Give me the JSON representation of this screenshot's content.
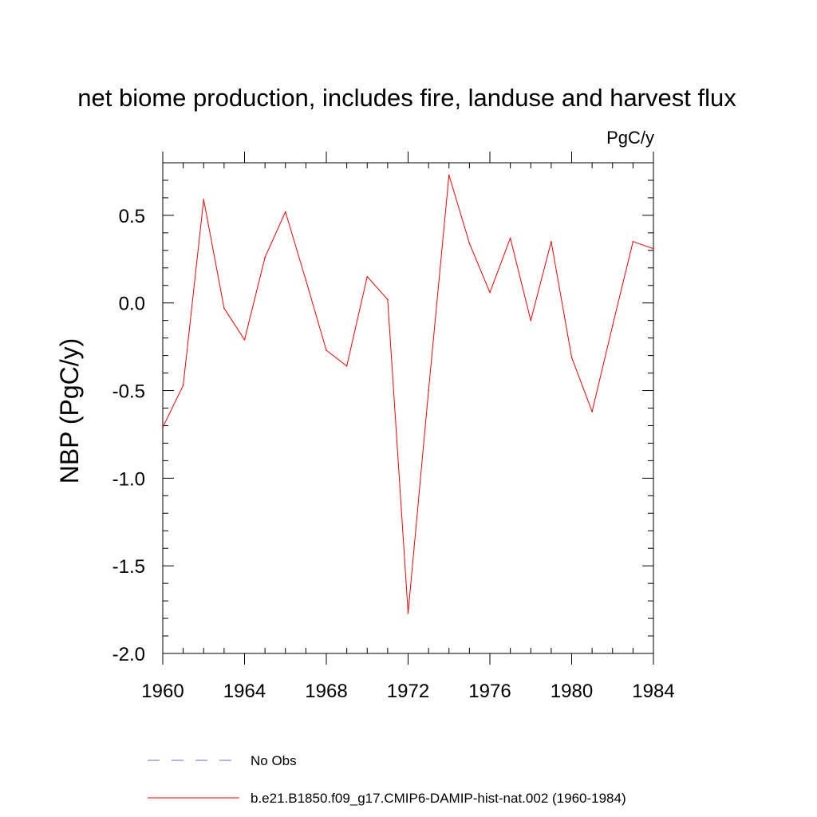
{
  "chart_data": {
    "type": "line",
    "title": "net biome production, includes fire, landuse and harvest flux",
    "units": "PgC/y",
    "ylabel": "NBP  (PgC/y)",
    "xlabel": "",
    "xlim": [
      1960,
      1984
    ],
    "ylim": [
      -2.0,
      0.8
    ],
    "x_ticks": [
      "1960",
      "1964",
      "1968",
      "1972",
      "1976",
      "1980",
      "1984"
    ],
    "y_ticks": [
      "0.5",
      "0.0",
      "-0.5",
      "-1.0",
      "-1.5",
      "-2.0"
    ],
    "grid": false,
    "legend_position": "bottom",
    "legend": [
      {
        "label": "No Obs",
        "color": "#6a6acd",
        "style": "dashed"
      },
      {
        "label": "b.e21.B1850.f09_g17.CMIP6-DAMIP-hist-nat.002 (1960-1984)",
        "color": "#ff0000",
        "style": "solid"
      }
    ],
    "series": [
      {
        "name": "b.e21.B1850.f09_g17.CMIP6-DAMIP-hist-nat.002 (1960-1984)",
        "color": "#ff0000",
        "x": [
          1960,
          1961,
          1962,
          1963,
          1964,
          1965,
          1966,
          1967,
          1968,
          1969,
          1970,
          1971,
          1972,
          1973,
          1974,
          1975,
          1976,
          1977,
          1978,
          1979,
          1980,
          1981,
          1982,
          1983,
          1984
        ],
        "y": [
          -0.71,
          -0.47,
          0.59,
          -0.03,
          -0.21,
          0.26,
          0.52,
          0.13,
          -0.27,
          -0.36,
          0.15,
          0.02,
          -1.77,
          -0.5,
          0.73,
          0.34,
          0.06,
          0.37,
          -0.1,
          0.35,
          -0.31,
          -0.62,
          -0.13,
          0.35,
          0.31
        ]
      }
    ]
  }
}
